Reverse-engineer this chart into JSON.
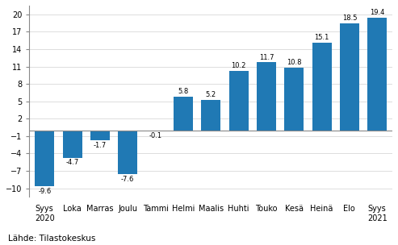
{
  "categories": [
    "Syys\n2020",
    "Loka",
    "Marras",
    "Joulu",
    "Tammi",
    "Helmi",
    "Maalis",
    "Huhti",
    "Touko",
    "Kesä",
    "Heinä",
    "Elo",
    "Syys\n2021"
  ],
  "values": [
    -9.6,
    -4.7,
    -1.7,
    -7.6,
    -0.1,
    5.8,
    5.2,
    10.2,
    11.7,
    10.8,
    15.1,
    18.5,
    19.4
  ],
  "bar_color_hex": "#2079b4",
  "ylim": [
    -11.5,
    21.5
  ],
  "yticks": [
    20,
    17,
    14,
    11,
    8,
    5,
    2,
    -1,
    -4,
    -7,
    -10
  ],
  "source_text": "Lähde: Tilastokeskus",
  "source_fontsize": 7.5,
  "value_fontsize": 6.0,
  "tick_fontsize": 7.0,
  "background_color": "#ffffff",
  "grid_color": "#d0d0d0",
  "zero_line_color": "#888888"
}
